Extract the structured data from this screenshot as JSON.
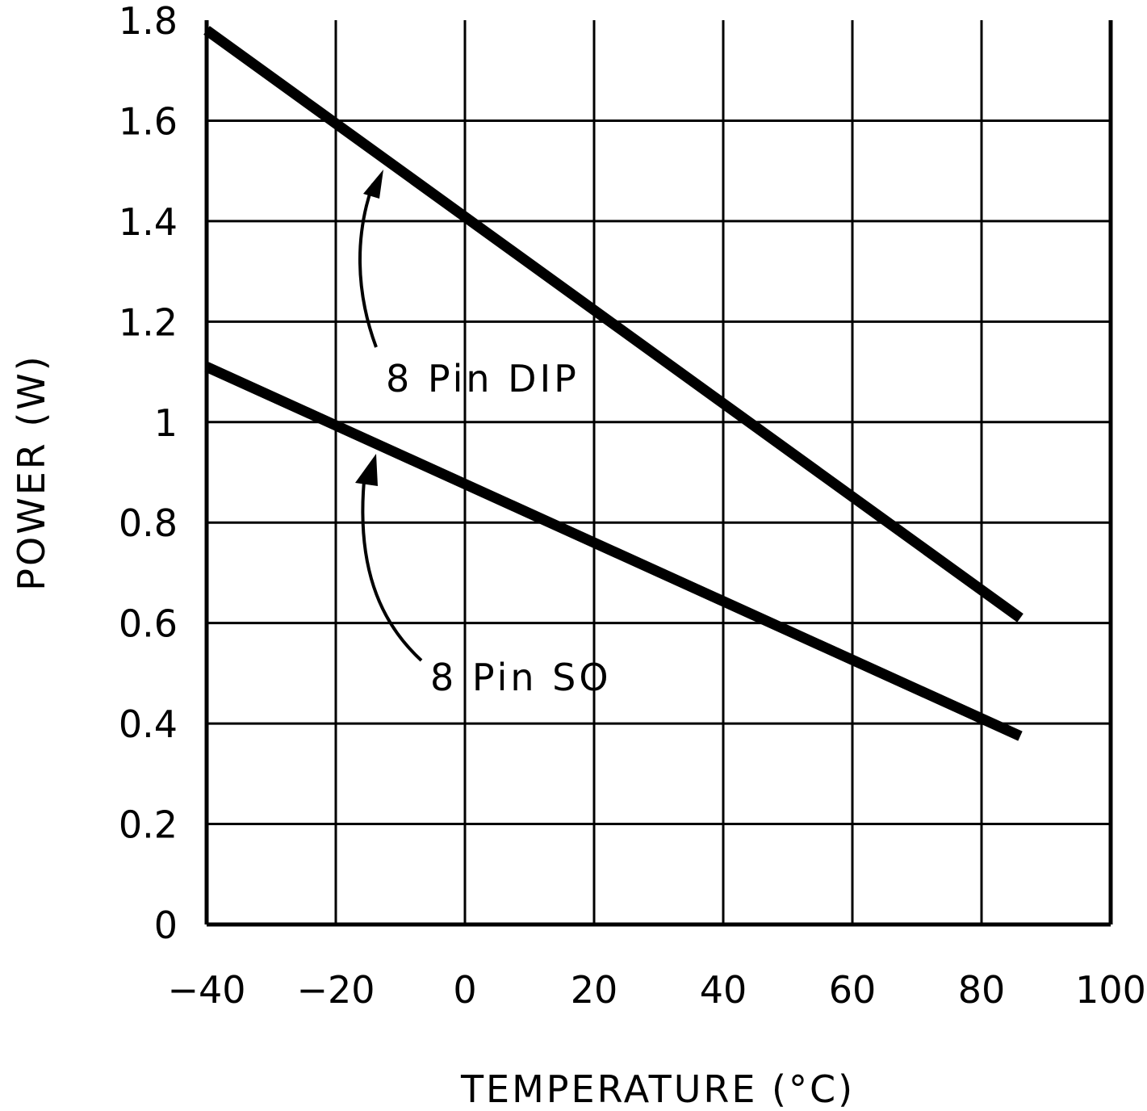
{
  "chart_data": {
    "type": "line",
    "title": "",
    "xlabel": "TEMPERATURE (°C)",
    "ylabel": "POWER (W)",
    "xlim": [
      -40,
      100
    ],
    "ylim": [
      0,
      1.8
    ],
    "xticks": [
      -40,
      -20,
      0,
      20,
      40,
      60,
      80,
      100
    ],
    "yticks": [
      0,
      0.2,
      0.4,
      0.6,
      0.8,
      1,
      1.2,
      1.4,
      1.6,
      1.8
    ],
    "xtick_labels": [
      "−40",
      "−20",
      "0",
      "20",
      "40",
      "60",
      "80",
      "100"
    ],
    "ytick_labels": [
      "0",
      "0.2",
      "0.4",
      "0.6",
      "0.8",
      "1",
      "1.2",
      "1.4",
      "1.6",
      "1.8"
    ],
    "grid": true,
    "series": [
      {
        "name": "8 Pin DIP",
        "x": [
          -40,
          86
        ],
        "y": [
          1.78,
          0.61
        ]
      },
      {
        "name": "8 Pin SO",
        "x": [
          -40,
          86
        ],
        "y": [
          1.11,
          0.375
        ]
      }
    ],
    "annotations": [
      "8 Pin DIP",
      "8 Pin SO"
    ],
    "line_color": "#000000"
  }
}
